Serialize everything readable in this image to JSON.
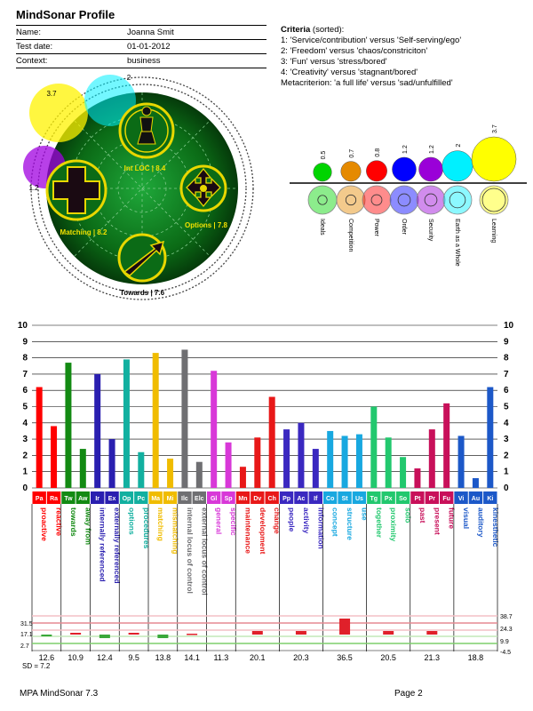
{
  "title": "MindSonar Profile",
  "info": [
    {
      "label": "Name:",
      "value": "Joanna Smit"
    },
    {
      "label": "Test date:",
      "value": "01-01-2012"
    },
    {
      "label": "Context:",
      "value": "business"
    }
  ],
  "criteria": {
    "heading": "Criteria",
    "heading_suffix": " (sorted):",
    "items": [
      "1: 'Service/contribution' versus 'Self-serving/ego'",
      "2: 'Freedom' versus 'chaos/constriciton'",
      "3: 'Fun' versus 'stress/bored'",
      "4: 'Creativity' versus 'stagnant/bored'",
      "Metacriterion: 'a full life' versus 'sad/unfulfilled'"
    ]
  },
  "radar": {
    "labels": [
      "Int LOC | 8.4",
      "Options | 7.8",
      "Towards | 7.6",
      "Matching | 8.2"
    ],
    "bubble_labels": [
      "3.7",
      "2",
      "1.2"
    ],
    "colors": {
      "field": "#0b6b16",
      "icon": "#e8d700",
      "bubble_yellow": "#fff300",
      "bubble_cyan": "#00f0ff",
      "bubble_purple": "#a000e0"
    }
  },
  "values_chart": {
    "values": [
      "0.5",
      "0.7",
      "0.8",
      "1.2",
      "1.2",
      "2",
      "3.7"
    ],
    "numeric": [
      0.5,
      0.7,
      0.8,
      1.2,
      1.2,
      2,
      3.7
    ],
    "colors": [
      "#00d400",
      "#e58a00",
      "#ff0000",
      "#0000ff",
      "#9a00d8",
      "#00f0ff",
      "#ffff00"
    ],
    "names": [
      "Ideals",
      "Competition",
      "Power",
      "Order",
      "Security",
      "Earth as a Whole",
      "Learning"
    ]
  },
  "chart_data": {
    "type": "bar",
    "y_ticks": [
      "10",
      "9",
      "8",
      "7",
      "6",
      "5",
      "4",
      "3",
      "2",
      "1",
      "0"
    ],
    "ylim": [
      0,
      10
    ],
    "grid": true,
    "categories": [
      "Pa",
      "Ra",
      "Tw",
      "Aw",
      "Ir",
      "Ex",
      "Op",
      "Pc",
      "Ma",
      "Mi",
      "Ilc",
      "Elc",
      "Gl",
      "Sp",
      "Mn",
      "Dv",
      "Ch",
      "Pp",
      "Ac",
      "If",
      "Co",
      "St",
      "Us",
      "Tg",
      "Px",
      "So",
      "Pt",
      "Pr",
      "Fu",
      "Vi",
      "Au",
      "Ki"
    ],
    "labels": [
      "proactive",
      "reactive",
      "towards",
      "away from",
      "internally referenced",
      "externally referenced",
      "options",
      "procedures",
      "matching",
      "mismatching",
      "internal locus of control",
      "external locus of control",
      "general",
      "specific",
      "maintenance",
      "development",
      "change",
      "people",
      "activity",
      "information",
      "concept",
      "structure",
      "use",
      "together",
      "proximity",
      "solo",
      "past",
      "present",
      "future",
      "visual",
      "auditory",
      "kinesthetic"
    ],
    "values": [
      6.2,
      3.8,
      7.7,
      2.4,
      7.0,
      3.0,
      7.9,
      2.2,
      8.3,
      1.8,
      8.5,
      1.6,
      7.2,
      2.8,
      1.3,
      3.1,
      5.6,
      3.6,
      4.0,
      2.4,
      3.5,
      3.2,
      3.3,
      5.0,
      3.1,
      1.9,
      1.2,
      3.6,
      5.2,
      3.2,
      0.6,
      6.2
    ],
    "colors": [
      "#ff0000",
      "#ff0000",
      "#138a13",
      "#138a13",
      "#2a1fb0",
      "#2a1fb0",
      "#12b0a0",
      "#12b0a0",
      "#f0bc00",
      "#f0bc00",
      "#6f6f72",
      "#6f6f72",
      "#d838d8",
      "#d838d8",
      "#e81818",
      "#e81818",
      "#e81818",
      "#3a28c0",
      "#3a28c0",
      "#3a28c0",
      "#18a8e0",
      "#18a8e0",
      "#18a8e0",
      "#22c86e",
      "#22c86e",
      "#22c86e",
      "#c8105a",
      "#c8105a",
      "#c8105a",
      "#1c58c8",
      "#1c58c8",
      "#1c58c8"
    ],
    "group_totals": [
      "12.6",
      "10.9",
      "12.4",
      "9.5",
      "13.8",
      "14.1",
      "11.3",
      "20.1",
      "20.3",
      "36.5",
      "20.5",
      "21.3",
      "18.8"
    ],
    "group_sizes": [
      2,
      2,
      2,
      2,
      2,
      2,
      2,
      3,
      3,
      3,
      3,
      3,
      3
    ],
    "sd_label": "SD = 7.2",
    "stress": {
      "left_ticks": [
        "31.5",
        "17.1",
        "2.7"
      ],
      "right_ticks": [
        "38.7",
        "24.3",
        "9.9",
        "-4.5"
      ],
      "values": [
        -1,
        1,
        -2,
        1,
        -2,
        0.5,
        0,
        2,
        2,
        9,
        2,
        2,
        0
      ]
    }
  },
  "footer": {
    "left": "MPA MindSonar 7.3",
    "right": "Page 2"
  }
}
